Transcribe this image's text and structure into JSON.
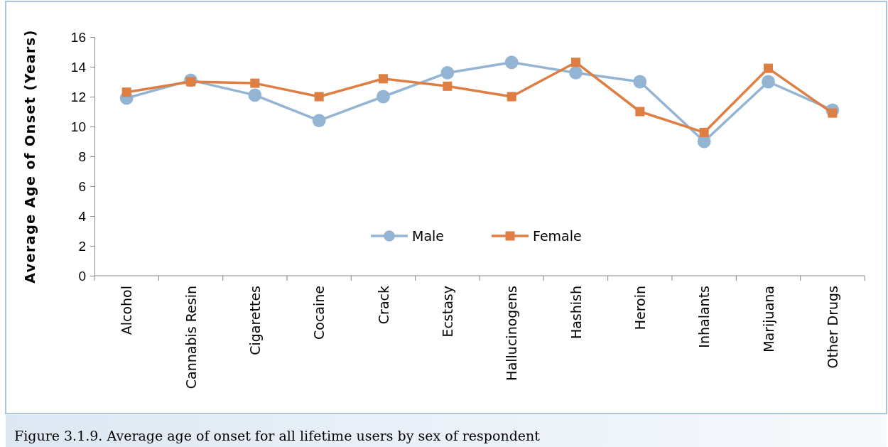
{
  "chart_data": {
    "type": "line",
    "ylabel": "Average Age of Onset (Years)",
    "categories": [
      "Alcohol",
      "Cannabis Resin",
      "Cigarettes",
      "Cocaine",
      "Crack",
      "Ecstasy",
      "Hallucinogens",
      "Hashish",
      "Heroin",
      "Inhalants",
      "Marijuana",
      "Other Drugs"
    ],
    "series": [
      {
        "name": "Male",
        "color": "#93b5d3",
        "marker": "circle",
        "values": [
          11.9,
          13.1,
          12.1,
          10.4,
          12.0,
          13.6,
          14.3,
          13.6,
          13.0,
          9.0,
          13.0,
          11.1
        ]
      },
      {
        "name": "Female",
        "color": "#de7e43",
        "marker": "square",
        "values": [
          12.3,
          13.0,
          12.9,
          12.0,
          13.2,
          12.7,
          12.0,
          14.3,
          11.0,
          9.6,
          13.9,
          10.9
        ]
      }
    ],
    "ylim": [
      0,
      16
    ],
    "yticks": [
      0,
      2,
      4,
      6,
      8,
      10,
      12,
      14,
      16
    ],
    "grid": false,
    "legend": "bottom",
    "annotations": [
      "Figure 3.1.9. Average age of onset for all lifetime users by sex of respondent"
    ]
  }
}
